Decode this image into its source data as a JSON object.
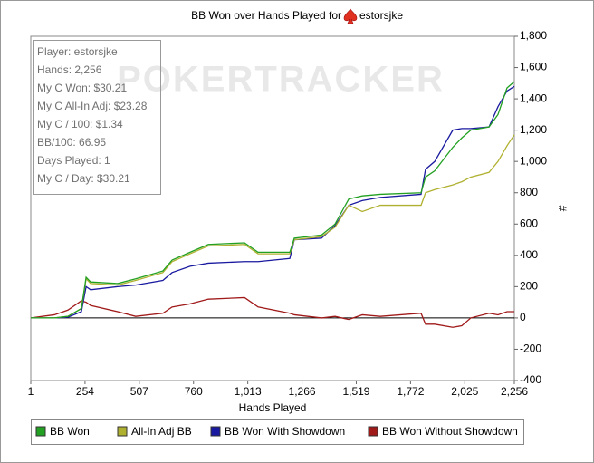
{
  "chart_data": {
    "type": "line",
    "title": "BB Won over Hands Played for",
    "player": "estorsjke",
    "watermark": "POKERTRACKER",
    "x_label": "Hands Played",
    "y_label": "#",
    "stats": [
      "Player: estorsjke",
      "Hands: 2,256",
      "My C Won: $30.21",
      "My C All-In Adj: $23.28",
      "My C / 100: $1.34",
      "BB/100: 66.95",
      "Days Played: 1",
      "My C / Day: $30.21"
    ],
    "x": [
      1,
      111,
      174,
      237,
      259,
      280,
      406,
      490,
      617,
      660,
      744,
      829,
      998,
      1061,
      1209,
      1230,
      1357,
      1420,
      1484,
      1547,
      1631,
      1821,
      1842,
      1885,
      1969,
      2011,
      2053,
      2138,
      2180,
      2222,
      2256
    ],
    "series": [
      {
        "name": "BB Won",
        "color": "#22a022",
        "values": [
          0,
          0,
          10,
          60,
          260,
          230,
          220,
          250,
          300,
          370,
          420,
          470,
          480,
          420,
          420,
          510,
          530,
          600,
          760,
          780,
          790,
          800,
          900,
          940,
          1090,
          1150,
          1200,
          1220,
          1300,
          1470,
          1510
        ]
      },
      {
        "name": "All-In Adj BB",
        "color": "#b0b030",
        "values": [
          0,
          0,
          10,
          60,
          250,
          220,
          210,
          240,
          290,
          360,
          410,
          460,
          470,
          410,
          410,
          500,
          520,
          580,
          720,
          680,
          720,
          720,
          800,
          820,
          850,
          870,
          900,
          930,
          1000,
          1100,
          1170
        ]
      },
      {
        "name": "BB Won With Showdown",
        "color": "#1a1aa0",
        "values": [
          0,
          0,
          5,
          40,
          200,
          180,
          200,
          210,
          240,
          290,
          330,
          350,
          360,
          360,
          380,
          500,
          510,
          590,
          720,
          750,
          770,
          790,
          950,
          1000,
          1200,
          1210,
          1210,
          1220,
          1350,
          1450,
          1480
        ]
      },
      {
        "name": "BB Won Without Showdown",
        "color": "#a01a1a",
        "values": [
          0,
          20,
          50,
          110,
          100,
          80,
          40,
          10,
          30,
          70,
          90,
          120,
          130,
          70,
          30,
          20,
          0,
          10,
          -10,
          20,
          10,
          30,
          -40,
          -40,
          -60,
          -50,
          0,
          30,
          20,
          40,
          40
        ]
      }
    ],
    "xlim": [
      1,
      2256
    ],
    "xticks": [
      1,
      254,
      507,
      760,
      {
        "value": 1013,
        "label": "1,013"
      },
      {
        "value": 1266,
        "label": "1,266"
      },
      {
        "value": 1519,
        "label": "1,519"
      },
      {
        "value": 1772,
        "label": "1,772"
      },
      {
        "value": 2025,
        "label": "2,025"
      },
      {
        "value": 2256,
        "label": "2,256"
      }
    ],
    "ylim": [
      -400,
      1800
    ],
    "yticks": [
      -400,
      -200,
      0,
      200,
      400,
      600,
      800,
      {
        "value": 1000,
        "label": "1,000"
      },
      {
        "value": 1200,
        "label": "1,200"
      },
      {
        "value": 1400,
        "label": "1,400"
      },
      {
        "value": 1600,
        "label": "1,600"
      },
      {
        "value": 1800,
        "label": "1,800"
      }
    ],
    "zero_line": true
  }
}
